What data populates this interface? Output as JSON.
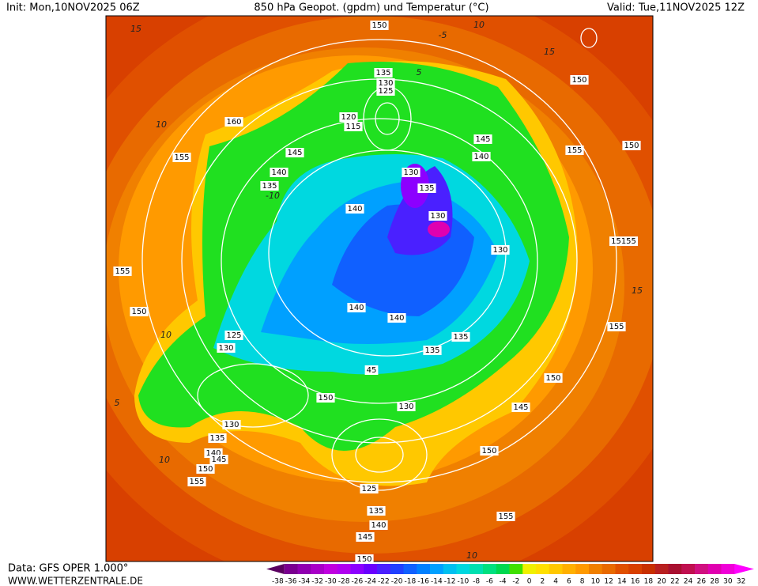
{
  "header": {
    "init": "Init: Mon,10NOV2025 06Z",
    "title": "850 hPa Geopot. (gpdm) und Temperatur (°C)",
    "valid": "Valid: Tue,11NOV2025 12Z"
  },
  "footer": {
    "data": "Data: GFS OPER 1.000°",
    "site": "WWW.WETTERZENTRALE.DE"
  },
  "color_scale": {
    "values": [
      -38,
      -36,
      -34,
      -32,
      -30,
      -28,
      -26,
      -24,
      -22,
      -20,
      -18,
      -16,
      -14,
      -12,
      -10,
      -8,
      -6,
      -4,
      -2,
      0,
      2,
      4,
      6,
      8,
      10,
      12,
      14,
      16,
      18,
      20,
      22,
      24,
      26,
      28,
      30,
      32
    ],
    "colors": [
      "#5a0060",
      "#7a0090",
      "#9000b0",
      "#a800c8",
      "#c000e0",
      "#b000f0",
      "#8c00ff",
      "#6a00ff",
      "#4a20ff",
      "#2040ff",
      "#1060ff",
      "#0080ff",
      "#00a0ff",
      "#00c0f0",
      "#00d8e0",
      "#00e0b0",
      "#00e080",
      "#00d850",
      "#40e000",
      "#f0f000",
      "#ffe000",
      "#ffc800",
      "#ffb000",
      "#ff9a00",
      "#f08000",
      "#e86a00",
      "#e05000",
      "#d84000",
      "#c83000",
      "#b82020",
      "#a81030",
      "#c01050",
      "#d01080",
      "#e000b0",
      "#f000d8",
      "#ff00ff"
    ]
  },
  "map": {
    "geopotential_labels": [
      150,
      135,
      130,
      125,
      120,
      115,
      160,
      155,
      145,
      140,
      135,
      140,
      130,
      135,
      130,
      145,
      140,
      155,
      150,
      150,
      15155,
      130,
      155,
      150,
      140,
      140,
      125,
      130,
      135,
      135,
      155,
      45,
      150,
      130,
      150,
      145,
      130,
      135,
      140,
      145,
      150,
      155,
      150,
      125,
      135,
      140,
      145,
      155,
      150
    ],
    "temperature_labels": [
      15,
      10,
      10,
      15,
      10,
      5,
      10,
      10,
      15,
      -5,
      5,
      -10
    ]
  }
}
